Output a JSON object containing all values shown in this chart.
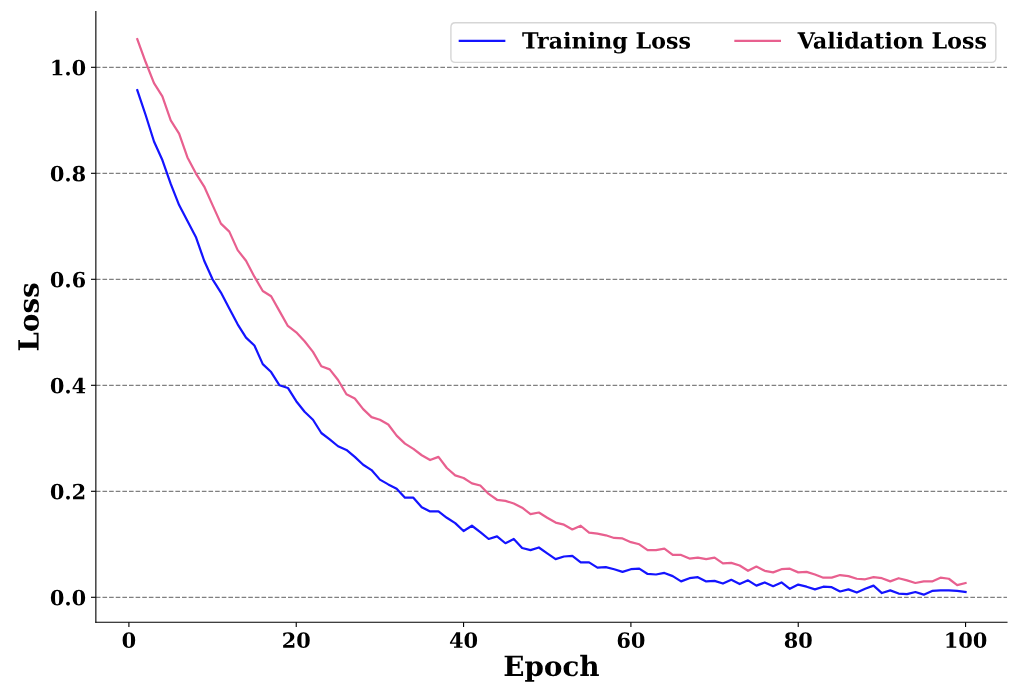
{
  "chart_data": {
    "type": "line",
    "xlabel": "Epoch",
    "ylabel": "Loss",
    "x": [
      1,
      2,
      3,
      4,
      5,
      6,
      7,
      8,
      9,
      10,
      11,
      12,
      13,
      14,
      15,
      16,
      17,
      18,
      19,
      20,
      21,
      22,
      23,
      24,
      25,
      26,
      27,
      28,
      29,
      30,
      31,
      32,
      33,
      34,
      35,
      36,
      37,
      38,
      39,
      40,
      41,
      42,
      43,
      44,
      45,
      46,
      47,
      48,
      49,
      50,
      51,
      52,
      53,
      54,
      55,
      56,
      57,
      58,
      59,
      60,
      61,
      62,
      63,
      64,
      65,
      66,
      67,
      68,
      69,
      70,
      71,
      72,
      73,
      74,
      75,
      76,
      77,
      78,
      79,
      80,
      81,
      82,
      83,
      84,
      85,
      86,
      87,
      88,
      89,
      90,
      91,
      92,
      93,
      94,
      95,
      96,
      97,
      98,
      99,
      100
    ],
    "series": [
      {
        "name": "Training Loss",
        "color": "#1414ff",
        "values": [
          0.957,
          0.91,
          0.86,
          0.825,
          0.78,
          0.74,
          0.71,
          0.68,
          0.635,
          0.6,
          0.575,
          0.545,
          0.515,
          0.49,
          0.475,
          0.44,
          0.425,
          0.4,
          0.395,
          0.37,
          0.35,
          0.335,
          0.31,
          0.298,
          0.285,
          0.278,
          0.265,
          0.25,
          0.24,
          0.222,
          0.213,
          0.205,
          0.188,
          0.188,
          0.17,
          0.162,
          0.162,
          0.15,
          0.14,
          0.125,
          0.135,
          0.123,
          0.11,
          0.115,
          0.102,
          0.11,
          0.093,
          0.089,
          0.094,
          0.083,
          0.072,
          0.077,
          0.078,
          0.066,
          0.066,
          0.056,
          0.057,
          0.053,
          0.048,
          0.053,
          0.054,
          0.044,
          0.043,
          0.046,
          0.04,
          0.03,
          0.036,
          0.038,
          0.03,
          0.031,
          0.026,
          0.033,
          0.025,
          0.032,
          0.022,
          0.028,
          0.021,
          0.028,
          0.016,
          0.024,
          0.02,
          0.015,
          0.02,
          0.019,
          0.011,
          0.015,
          0.009,
          0.016,
          0.022,
          0.008,
          0.013,
          0.007,
          0.006,
          0.01,
          0.005,
          0.012,
          0.013,
          0.013,
          0.012,
          0.01
        ]
      },
      {
        "name": "Validation Loss",
        "color": "#e8608f",
        "values": [
          1.053,
          1.01,
          0.97,
          0.945,
          0.9,
          0.875,
          0.83,
          0.8,
          0.775,
          0.74,
          0.705,
          0.69,
          0.655,
          0.635,
          0.605,
          0.578,
          0.568,
          0.54,
          0.512,
          0.5,
          0.483,
          0.463,
          0.436,
          0.43,
          0.41,
          0.383,
          0.375,
          0.355,
          0.34,
          0.335,
          0.326,
          0.305,
          0.29,
          0.28,
          0.268,
          0.259,
          0.265,
          0.244,
          0.23,
          0.225,
          0.215,
          0.211,
          0.195,
          0.184,
          0.182,
          0.177,
          0.169,
          0.157,
          0.16,
          0.15,
          0.141,
          0.137,
          0.128,
          0.135,
          0.122,
          0.12,
          0.117,
          0.112,
          0.111,
          0.104,
          0.1,
          0.089,
          0.089,
          0.092,
          0.08,
          0.08,
          0.073,
          0.075,
          0.072,
          0.075,
          0.064,
          0.065,
          0.06,
          0.05,
          0.058,
          0.05,
          0.047,
          0.053,
          0.054,
          0.047,
          0.048,
          0.043,
          0.037,
          0.037,
          0.042,
          0.04,
          0.035,
          0.034,
          0.038,
          0.036,
          0.03,
          0.036,
          0.032,
          0.027,
          0.03,
          0.03,
          0.037,
          0.035,
          0.023,
          0.027
        ]
      }
    ],
    "xlim": [
      -3.95,
      104.95
    ],
    "xticks": [
      0,
      20,
      40,
      60,
      80,
      100
    ],
    "ylim": [
      -0.047,
      1.105
    ],
    "yticks": [
      {
        "value": 0,
        "label": "0.0"
      },
      {
        "value": 0.2,
        "label": "0.2"
      },
      {
        "value": 0.4,
        "label": "0.4"
      },
      {
        "value": 0.6,
        "label": "0.6"
      },
      {
        "value": 0.8,
        "label": "0.8"
      },
      {
        "value": 1.0,
        "label": "1.0"
      }
    ],
    "grid": "y",
    "legend": "top right",
    "line_style": "solid",
    "marker": "none"
  }
}
